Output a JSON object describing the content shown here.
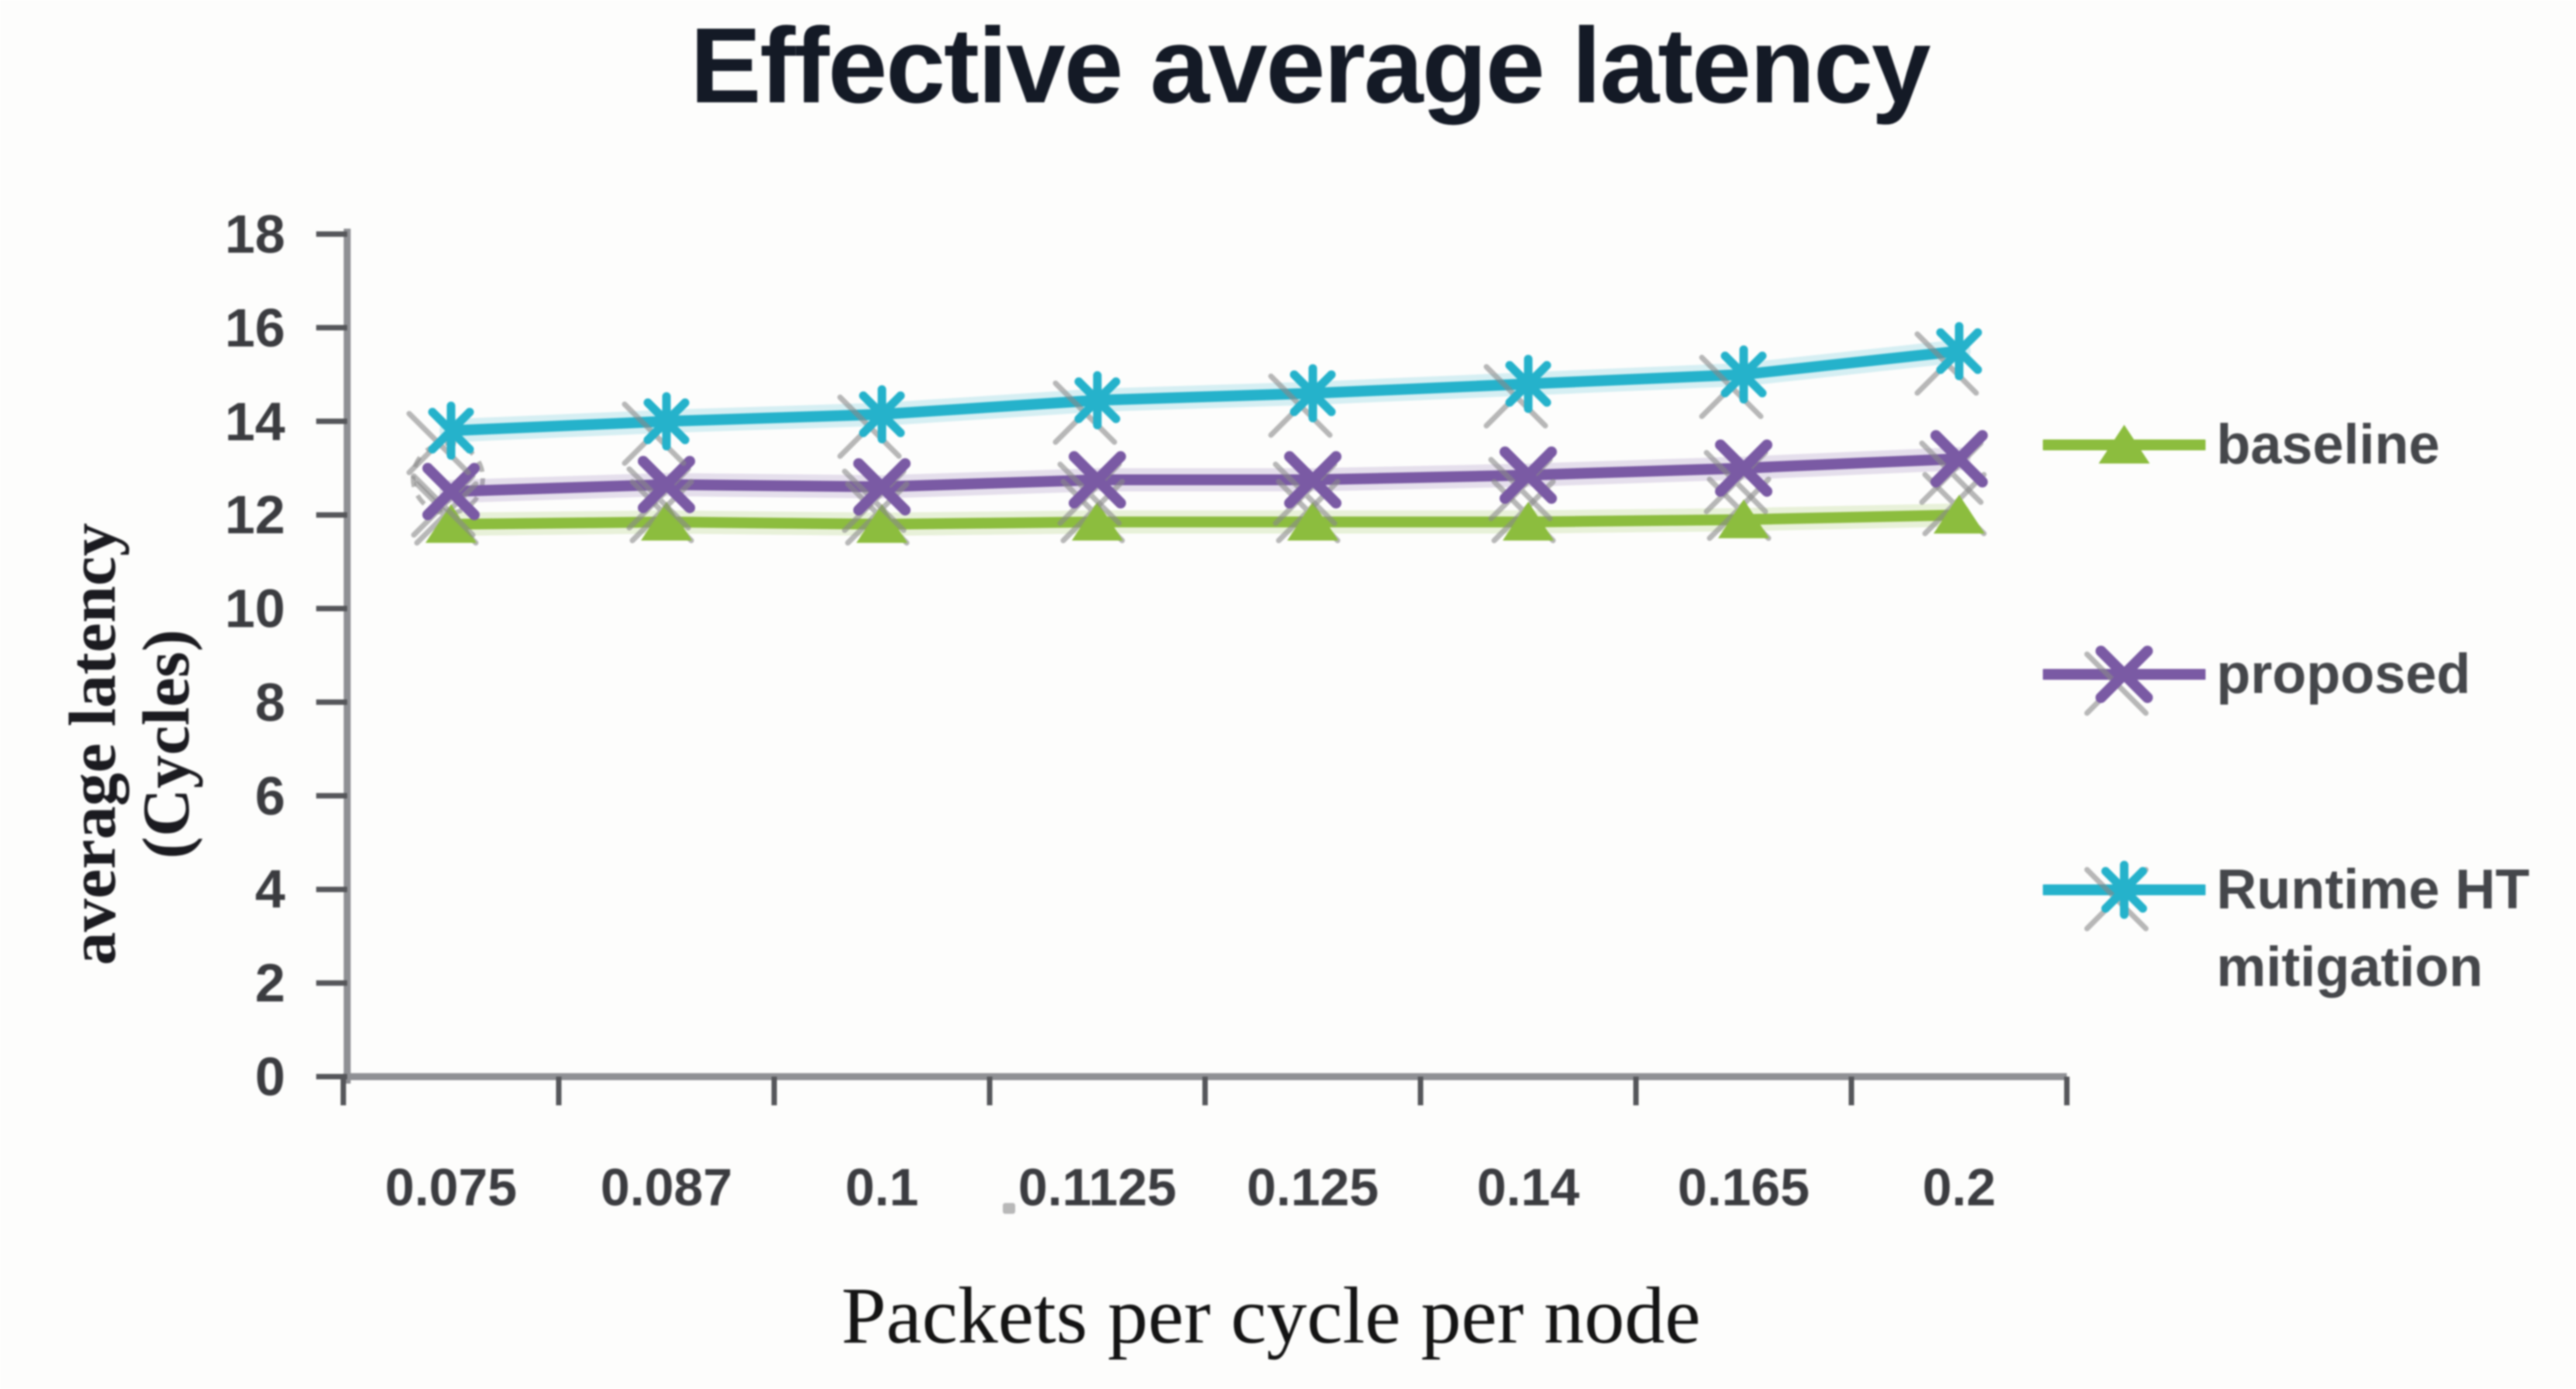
{
  "chart_data": {
    "type": "line",
    "title": "Effective average latency",
    "xlabel": "Packets per cycle per node",
    "ylabel": "average latency (Cycles)",
    "ylabel_lines": [
      "average latency",
      "(Cycles)"
    ],
    "categories": [
      "0.075",
      "0.087",
      "0.1",
      "0.1125",
      "0.125",
      "0.14",
      "0.165",
      "0.2"
    ],
    "yticks": [
      "0",
      "2",
      "4",
      "6",
      "8",
      "10",
      "12",
      "14",
      "16",
      "18"
    ],
    "ylim": [
      0,
      18
    ],
    "ytick_step": 2,
    "grid": false,
    "legend_position": "right",
    "series": [
      {
        "name": "baseline",
        "marker": "triangle",
        "color": "#8cbd3e",
        "values": [
          11.8,
          11.85,
          11.8,
          11.85,
          11.85,
          11.85,
          11.9,
          12.0
        ]
      },
      {
        "name": "proposed",
        "marker": "x",
        "color": "#7a5aa4",
        "values": [
          12.5,
          12.65,
          12.6,
          12.75,
          12.75,
          12.85,
          13.0,
          13.2
        ]
      },
      {
        "name": "Runtime HT mitigation",
        "marker": "asterisk",
        "color": "#25b2cb",
        "values": [
          13.8,
          14.0,
          14.15,
          14.45,
          14.6,
          14.8,
          15.0,
          15.5
        ]
      }
    ]
  },
  "colors": {
    "background": "#ffffff",
    "title_text": "#141a26",
    "tick_label": "#3b3c40",
    "legend_text": "#45474b",
    "axis_line": "#8f9094",
    "tick_mark": "#55565a",
    "ghost_mark": "#8a8a8a"
  }
}
